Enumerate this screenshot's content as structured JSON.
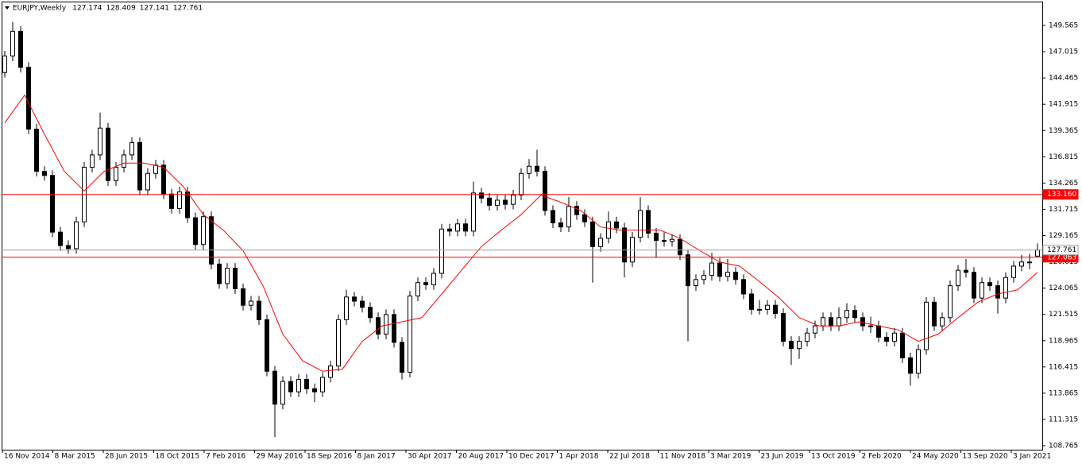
{
  "chart_data": {
    "type": "candlestick",
    "title": "EURJPY,Weekly",
    "ohlc_header": [
      127.174,
      128.409,
      127.141,
      127.761
    ],
    "ylim": [
      108.38,
      151.88
    ],
    "yticks": [
      108.765,
      111.315,
      113.865,
      116.415,
      118.965,
      121.515,
      124.065,
      126.615,
      129.165,
      131.715,
      134.265,
      136.815,
      139.365,
      141.915,
      144.465,
      147.015,
      149.565
    ],
    "x_labels": [
      "16 Nov 2014",
      "8 Mar 2015",
      "28 Jun 2015",
      "18 Oct 2015",
      "7 Feb 2016",
      "29 May 2016",
      "18 Sep 2016",
      "8 Jan 2017",
      "30 Apr 2017",
      "20 Aug 2017",
      "10 Dec 2017",
      "1 Apr 2018",
      "22 Jul 2018",
      "11 Nov 2018",
      "3 Mar 2019",
      "23 Jun 2019",
      "13 Oct 2019",
      "2 Feb 2020",
      "24 May 2020",
      "13 Sep 2020",
      "3 Jan 2021"
    ],
    "bull_color": "#ffffff",
    "bear_color": "#000000",
    "outline_color": "#000000",
    "candles": [
      [
        145.0,
        147.1,
        144.5,
        146.6
      ],
      [
        146.6,
        149.9,
        146.1,
        149.0
      ],
      [
        149.0,
        149.5,
        145.0,
        145.5
      ],
      [
        145.5,
        146.0,
        139.0,
        139.5
      ],
      [
        139.5,
        140.0,
        134.9,
        135.4
      ],
      [
        135.4,
        135.9,
        134.5,
        135.0
      ],
      [
        135.0,
        135.5,
        129.0,
        129.5
      ],
      [
        129.5,
        130.0,
        127.7,
        128.2
      ],
      [
        128.2,
        128.7,
        127.4,
        127.9
      ],
      [
        127.9,
        131.0,
        127.4,
        130.5
      ],
      [
        130.5,
        136.3,
        130.0,
        135.8
      ],
      [
        135.8,
        137.5,
        135.3,
        137.0
      ],
      [
        137.0,
        141.1,
        136.5,
        139.6
      ],
      [
        139.6,
        140.1,
        134.0,
        134.5
      ],
      [
        134.5,
        136.3,
        134.0,
        135.8
      ],
      [
        135.8,
        137.5,
        135.3,
        137.0
      ],
      [
        137.0,
        138.7,
        136.5,
        138.2
      ],
      [
        138.2,
        138.7,
        133.1,
        133.6
      ],
      [
        133.6,
        135.7,
        133.1,
        135.2
      ],
      [
        135.2,
        136.5,
        134.7,
        136.0
      ],
      [
        136.0,
        136.5,
        132.7,
        133.2
      ],
      [
        133.2,
        133.7,
        131.3,
        131.8
      ],
      [
        131.8,
        133.9,
        131.3,
        133.4
      ],
      [
        133.4,
        133.9,
        130.4,
        130.9
      ],
      [
        130.9,
        131.4,
        127.8,
        128.3
      ],
      [
        128.3,
        131.5,
        127.8,
        131.0
      ],
      [
        131.0,
        131.5,
        125.9,
        126.4
      ],
      [
        126.4,
        126.9,
        124.0,
        124.5
      ],
      [
        124.5,
        126.5,
        124.0,
        126.0
      ],
      [
        126.0,
        126.5,
        123.5,
        124.0
      ],
      [
        124.0,
        124.5,
        121.9,
        122.4
      ],
      [
        122.4,
        123.3,
        121.9,
        122.8
      ],
      [
        122.8,
        123.3,
        120.5,
        121.0
      ],
      [
        121.0,
        121.5,
        115.5,
        116.0
      ],
      [
        116.0,
        116.5,
        109.6,
        112.8
      ],
      [
        112.8,
        115.5,
        112.3,
        115.0
      ],
      [
        115.0,
        115.5,
        113.5,
        114.0
      ],
      [
        114.0,
        115.7,
        113.5,
        115.2
      ],
      [
        115.2,
        115.7,
        113.8,
        114.3
      ],
      [
        114.3,
        114.8,
        113.0,
        114.0
      ],
      [
        114.0,
        115.9,
        113.5,
        115.4
      ],
      [
        115.4,
        117.0,
        114.9,
        116.5
      ],
      [
        116.5,
        121.5,
        116.0,
        121.0
      ],
      [
        121.0,
        123.9,
        120.5,
        123.2
      ],
      [
        123.2,
        123.7,
        122.3,
        122.8
      ],
      [
        122.8,
        123.3,
        121.7,
        122.2
      ],
      [
        122.2,
        122.7,
        120.7,
        121.2
      ],
      [
        121.2,
        121.7,
        119.1,
        119.6
      ],
      [
        119.6,
        122.0,
        119.1,
        121.5
      ],
      [
        121.5,
        122.0,
        118.3,
        118.8
      ],
      [
        118.8,
        119.3,
        115.2,
        115.9
      ],
      [
        115.9,
        123.8,
        115.4,
        123.3
      ],
      [
        123.3,
        125.1,
        122.8,
        124.6
      ],
      [
        124.6,
        125.1,
        123.9,
        124.4
      ],
      [
        124.4,
        126.0,
        123.9,
        125.5
      ],
      [
        125.5,
        130.3,
        125.0,
        129.8
      ],
      [
        129.8,
        130.3,
        129.1,
        129.6
      ],
      [
        129.6,
        130.8,
        129.1,
        130.3
      ],
      [
        130.3,
        130.8,
        129.1,
        129.6
      ],
      [
        129.6,
        134.4,
        129.1,
        133.3
      ],
      [
        133.3,
        133.8,
        132.3,
        132.8
      ],
      [
        132.8,
        133.3,
        131.6,
        132.1
      ],
      [
        132.1,
        133.1,
        131.6,
        132.6
      ],
      [
        132.6,
        133.1,
        131.7,
        132.2
      ],
      [
        132.2,
        133.6,
        131.7,
        133.1
      ],
      [
        133.1,
        135.7,
        132.6,
        135.2
      ],
      [
        135.2,
        136.6,
        134.7,
        135.9
      ],
      [
        135.9,
        137.5,
        134.9,
        135.4
      ],
      [
        135.4,
        135.9,
        131.1,
        131.6
      ],
      [
        131.6,
        132.1,
        129.9,
        130.4
      ],
      [
        130.4,
        130.9,
        129.5,
        130.0
      ],
      [
        130.0,
        132.9,
        129.5,
        132.0
      ],
      [
        132.0,
        132.5,
        130.7,
        131.2
      ],
      [
        131.2,
        131.7,
        130.0,
        130.5
      ],
      [
        130.5,
        131.0,
        124.6,
        128.1
      ],
      [
        128.1,
        129.4,
        127.6,
        128.9
      ],
      [
        128.9,
        131.5,
        128.4,
        130.5
      ],
      [
        130.5,
        131.0,
        129.4,
        129.9
      ],
      [
        129.9,
        130.4,
        125.1,
        126.6
      ],
      [
        126.6,
        129.5,
        126.1,
        129.0
      ],
      [
        129.0,
        132.9,
        128.5,
        131.6
      ],
      [
        131.6,
        132.1,
        128.9,
        129.4
      ],
      [
        129.4,
        129.9,
        127.0,
        128.7
      ],
      [
        128.7,
        129.5,
        128.1,
        128.6
      ],
      [
        128.6,
        129.3,
        128.1,
        128.8
      ],
      [
        128.8,
        129.3,
        126.8,
        127.3
      ],
      [
        127.3,
        127.8,
        118.9,
        124.3
      ],
      [
        124.3,
        125.4,
        123.8,
        124.9
      ],
      [
        124.9,
        125.8,
        124.4,
        125.3
      ],
      [
        125.3,
        127.5,
        124.8,
        126.5
      ],
      [
        126.5,
        127.0,
        124.7,
        125.2
      ],
      [
        125.2,
        126.9,
        124.7,
        125.6
      ],
      [
        125.6,
        126.1,
        124.4,
        124.9
      ],
      [
        124.9,
        125.4,
        123.0,
        123.5
      ],
      [
        123.5,
        124.0,
        121.5,
        122.0
      ],
      [
        122.0,
        122.9,
        121.5,
        122.0
      ],
      [
        122.0,
        122.9,
        121.5,
        122.4
      ],
      [
        122.4,
        122.9,
        121.1,
        121.6
      ],
      [
        121.6,
        122.1,
        118.4,
        118.9
      ],
      [
        118.9,
        119.4,
        116.6,
        118.2
      ],
      [
        118.2,
        119.4,
        117.2,
        118.9
      ],
      [
        118.9,
        120.2,
        118.4,
        119.7
      ],
      [
        119.7,
        120.9,
        119.2,
        120.4
      ],
      [
        120.4,
        121.7,
        119.9,
        121.2
      ],
      [
        121.2,
        121.7,
        119.9,
        120.4
      ],
      [
        120.4,
        122.2,
        119.9,
        121.2
      ],
      [
        121.2,
        122.6,
        120.7,
        121.9
      ],
      [
        121.9,
        122.4,
        120.7,
        121.2
      ],
      [
        121.2,
        121.7,
        119.9,
        120.4
      ],
      [
        120.4,
        121.3,
        119.7,
        120.4
      ],
      [
        120.4,
        120.9,
        118.8,
        119.3
      ],
      [
        119.3,
        119.8,
        118.4,
        118.9
      ],
      [
        118.9,
        120.2,
        118.4,
        119.7
      ],
      [
        119.7,
        120.2,
        116.8,
        117.3
      ],
      [
        117.3,
        117.8,
        114.6,
        115.8
      ],
      [
        115.8,
        118.6,
        115.3,
        118.1
      ],
      [
        118.1,
        123.2,
        117.6,
        122.7
      ],
      [
        122.7,
        123.2,
        119.9,
        120.4
      ],
      [
        120.4,
        121.7,
        119.9,
        121.2
      ],
      [
        121.2,
        124.8,
        120.7,
        124.3
      ],
      [
        124.3,
        126.3,
        123.8,
        125.8
      ],
      [
        125.8,
        126.9,
        125.1,
        125.6
      ],
      [
        125.6,
        126.1,
        122.6,
        123.1
      ],
      [
        123.1,
        125.1,
        122.6,
        124.6
      ],
      [
        124.6,
        125.1,
        123.8,
        124.3
      ],
      [
        124.3,
        124.8,
        121.6,
        123.1
      ],
      [
        123.1,
        125.6,
        122.6,
        125.1
      ],
      [
        125.1,
        126.7,
        124.6,
        126.2
      ],
      [
        126.2,
        127.3,
        125.7,
        126.6
      ],
      [
        126.6,
        127.4,
        125.9,
        126.6
      ],
      [
        127.174,
        128.409,
        127.141,
        127.761
      ]
    ],
    "ma": {
      "color": "#ff0000",
      "x": [
        0,
        2.5,
        5,
        7.5,
        10,
        12.5,
        15,
        17.5,
        20,
        22.5,
        25,
        27.5,
        30,
        32.5,
        35,
        37.5,
        40,
        42.5,
        45,
        47.5,
        50,
        52.5,
        55,
        57.5,
        60,
        62.5,
        65,
        67.5,
        70,
        72.5,
        75,
        77.5,
        80,
        82.5,
        85,
        87.5,
        90,
        92.5,
        95,
        97.5,
        100,
        102.5,
        105,
        107.5,
        110,
        112.5,
        115,
        117.5,
        120,
        122.5,
        125,
        127.5,
        130
      ],
      "values": [
        140.1,
        142.8,
        139.0,
        135.4,
        133.5,
        135.4,
        136.2,
        136.2,
        135.8,
        133.9,
        131.2,
        129.7,
        127.7,
        124.3,
        119.6,
        117.0,
        116.0,
        116.2,
        118.9,
        120.4,
        120.8,
        121.2,
        123.5,
        125.8,
        128.1,
        129.7,
        131.2,
        133.1,
        132.4,
        131.6,
        130.0,
        129.7,
        129.7,
        129.7,
        128.9,
        127.7,
        126.6,
        126.2,
        124.7,
        123.1,
        121.2,
        120.4,
        120.4,
        120.8,
        120.4,
        120.0,
        118.9,
        119.6,
        121.2,
        122.7,
        123.5,
        123.9,
        125.6
      ]
    },
    "hlines": [
      {
        "value": 133.16,
        "label": "133.160",
        "color": "#ff0000",
        "text_color": "#ffffff"
      },
      {
        "value": 127.063,
        "label": "127.063",
        "color": "#ff0000",
        "text_color": "#ffffff"
      },
      {
        "value": 127.761,
        "label": "127.761",
        "color": "#a0a0a0",
        "text_color": "#000000"
      }
    ]
  }
}
